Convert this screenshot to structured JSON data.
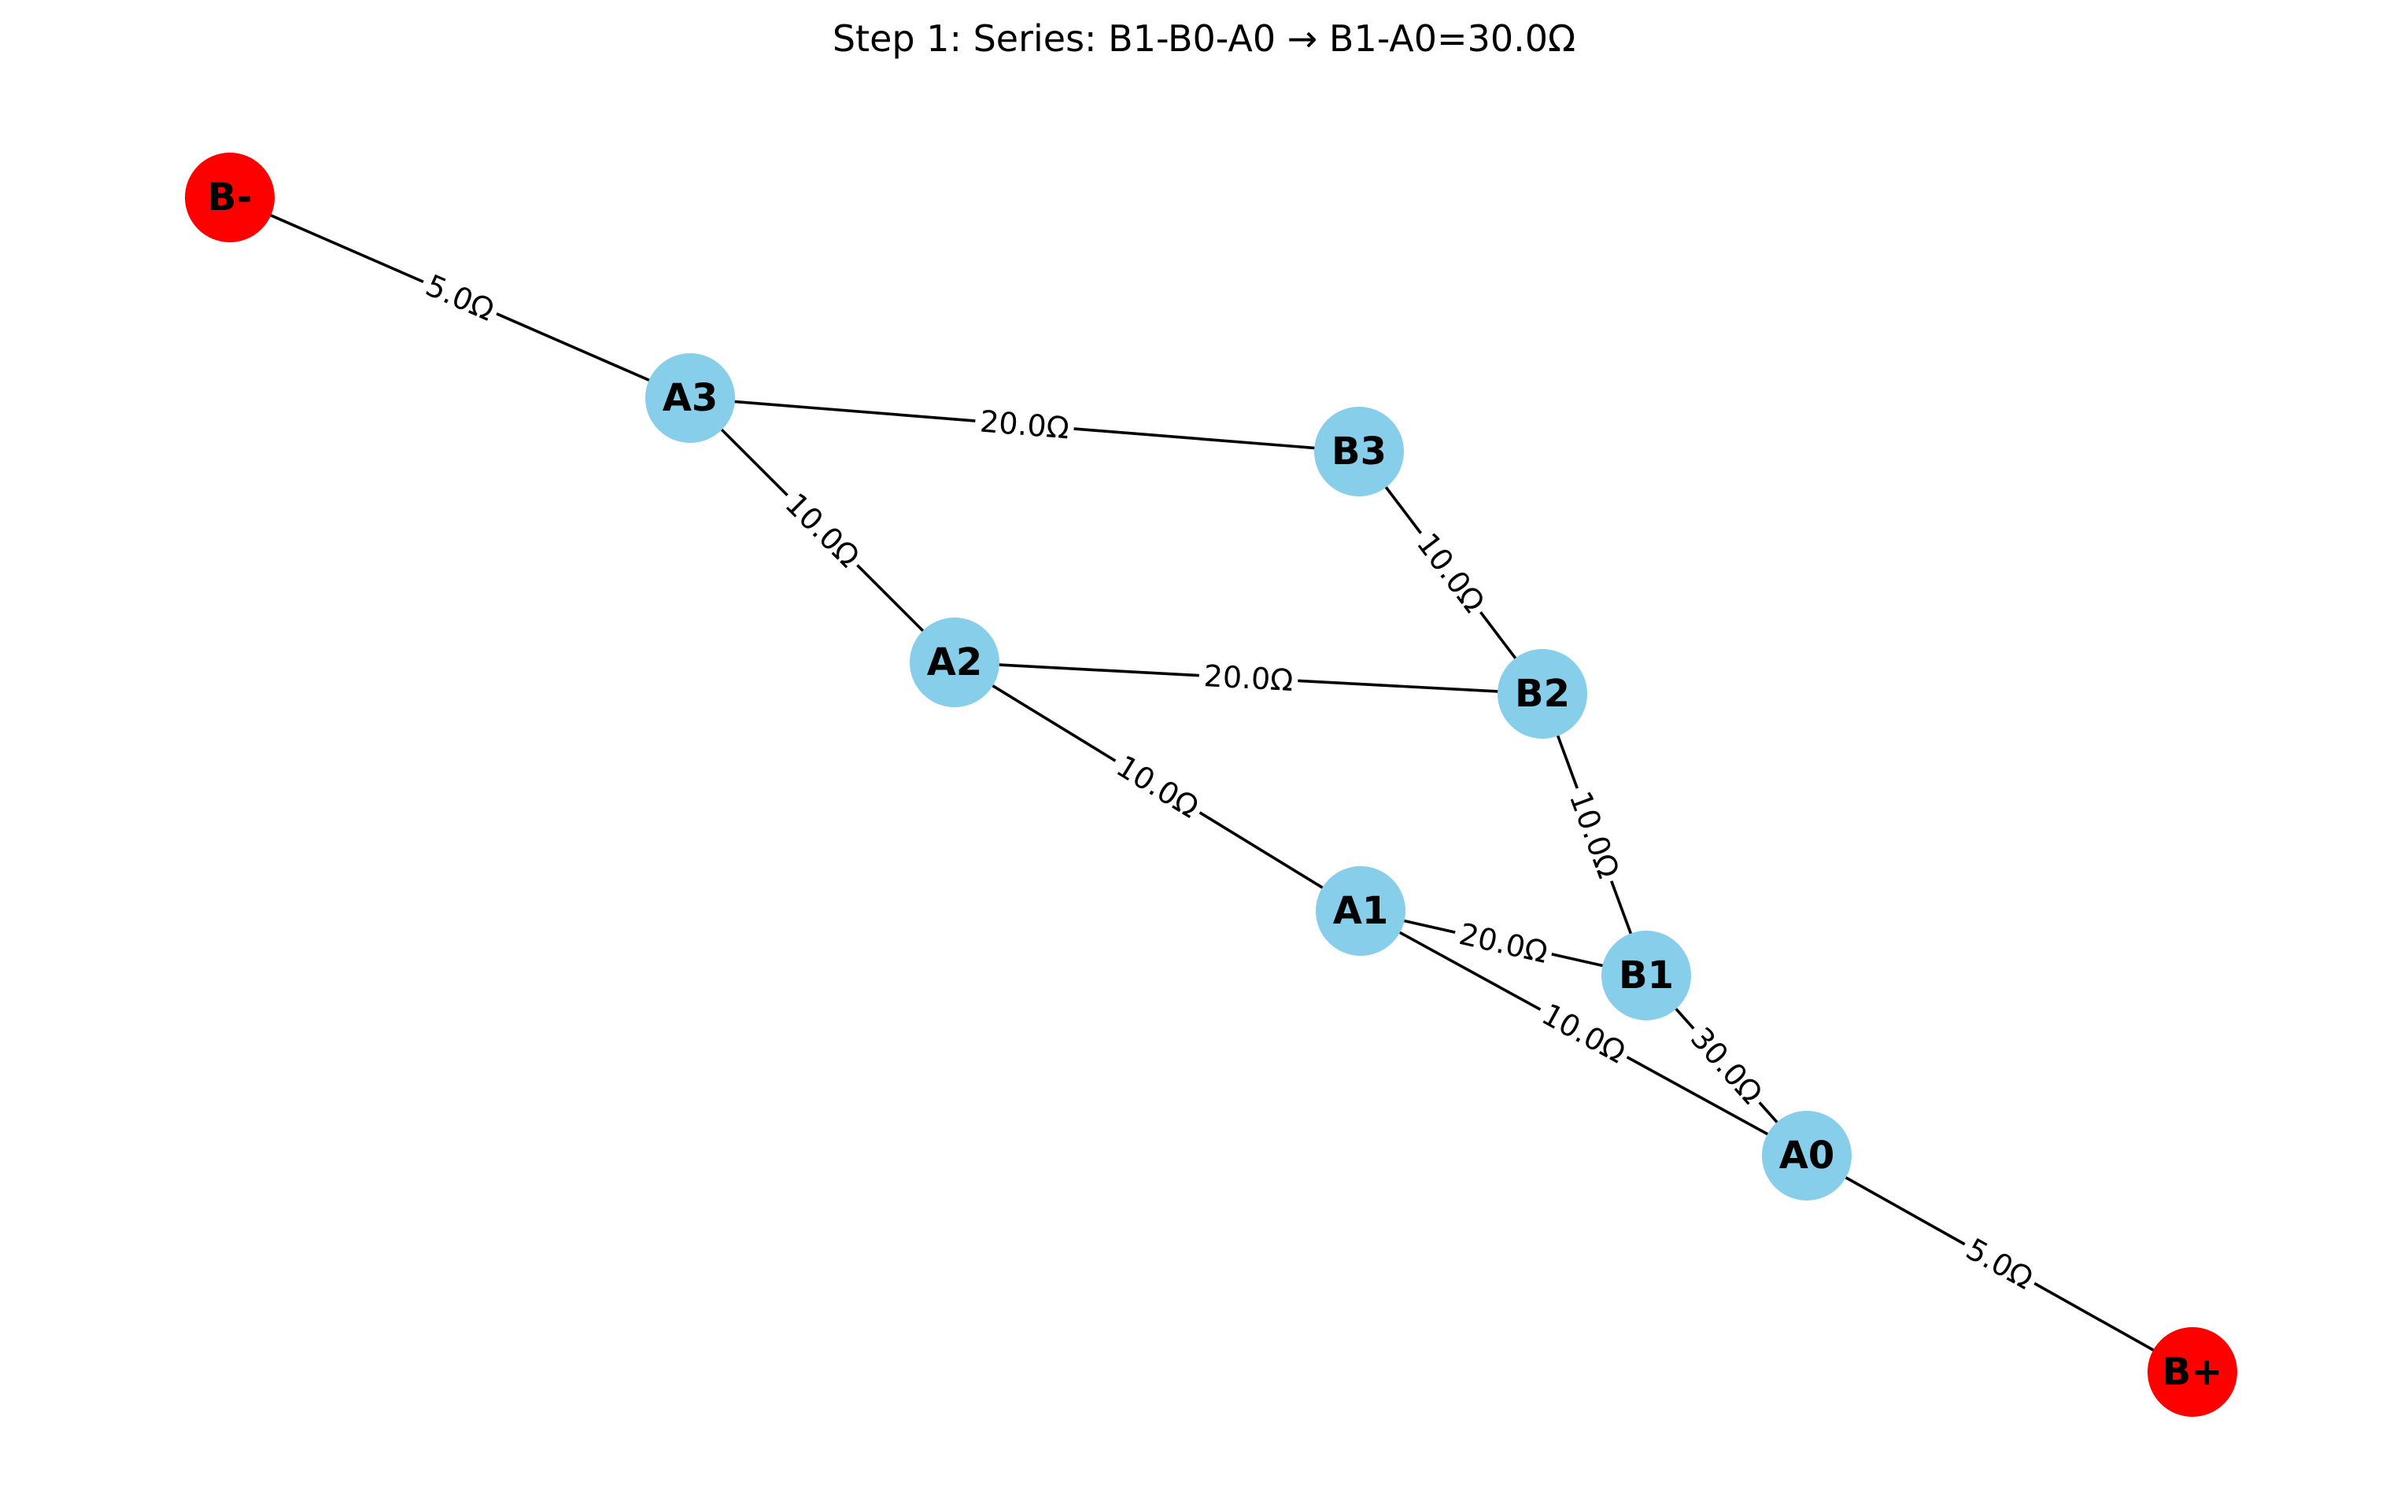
{
  "title": "Step 1: Series: B1-B0-A0 → B1-A0=30.0Ω",
  "colors": {
    "terminal_node": "#ff0000",
    "internal_node": "#87ceeb",
    "edge": "#000000",
    "label_background": "#ffffff"
  },
  "nodes": [
    {
      "id": "B-",
      "label": "B-",
      "kind": "terminal"
    },
    {
      "id": "A3",
      "label": "A3",
      "kind": "internal"
    },
    {
      "id": "B3",
      "label": "B3",
      "kind": "internal"
    },
    {
      "id": "A2",
      "label": "A2",
      "kind": "internal"
    },
    {
      "id": "B2",
      "label": "B2",
      "kind": "internal"
    },
    {
      "id": "A1",
      "label": "A1",
      "kind": "internal"
    },
    {
      "id": "B1",
      "label": "B1",
      "kind": "internal"
    },
    {
      "id": "A0",
      "label": "A0",
      "kind": "internal"
    },
    {
      "id": "B+",
      "label": "B+",
      "kind": "terminal"
    }
  ],
  "edges": [
    {
      "from": "B-",
      "to": "A3",
      "label": "5.0Ω"
    },
    {
      "from": "A3",
      "to": "B3",
      "label": "20.0Ω"
    },
    {
      "from": "A3",
      "to": "A2",
      "label": "10.0Ω"
    },
    {
      "from": "B3",
      "to": "B2",
      "label": "10.0Ω"
    },
    {
      "from": "A2",
      "to": "B2",
      "label": "20.0Ω"
    },
    {
      "from": "A2",
      "to": "A1",
      "label": "10.0Ω"
    },
    {
      "from": "B2",
      "to": "B1",
      "label": "10.0Ω"
    },
    {
      "from": "A1",
      "to": "B1",
      "label": "20.0Ω"
    },
    {
      "from": "A1",
      "to": "A0",
      "label": "10.0Ω"
    },
    {
      "from": "B1",
      "to": "A0",
      "label": "30.0Ω"
    },
    {
      "from": "A0",
      "to": "B+",
      "label": "5.0Ω"
    }
  ]
}
